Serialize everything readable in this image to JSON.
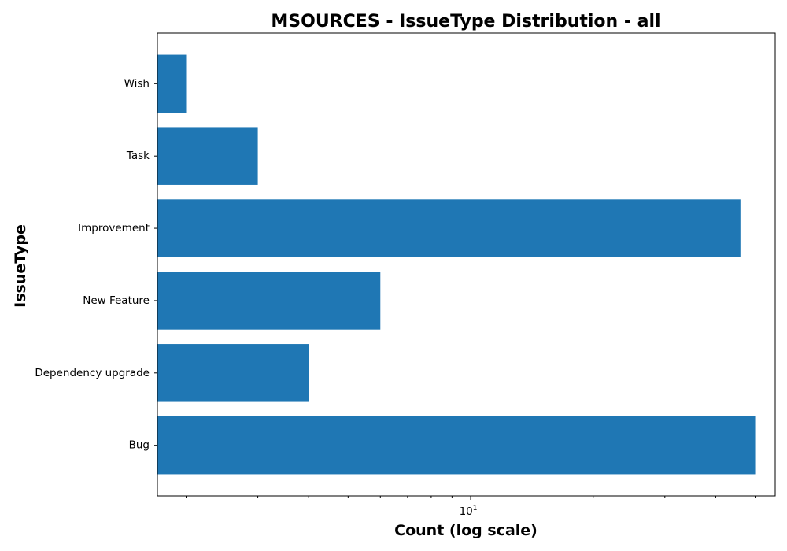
{
  "chart_data": {
    "type": "bar",
    "orientation": "horizontal",
    "title": "MSOURCES - IssueType Distribution - all",
    "xlabel": "Count (log scale)",
    "ylabel": "IssueType",
    "x_scale": "log",
    "xlim": [
      1.7,
      56
    ],
    "grid": false,
    "legend": "none",
    "bar_color": "#1f77b4",
    "categories": [
      "Bug",
      "Dependency upgrade",
      "New Feature",
      "Improvement",
      "Task",
      "Wish"
    ],
    "values": [
      50,
      4,
      6,
      46,
      3,
      2
    ],
    "x_major_ticks": [
      {
        "value": 10,
        "base": "10",
        "exponent": "1"
      }
    ],
    "x_minor_ticks": [
      2,
      3,
      4,
      5,
      6,
      7,
      8,
      9,
      20,
      30,
      40,
      50
    ]
  }
}
